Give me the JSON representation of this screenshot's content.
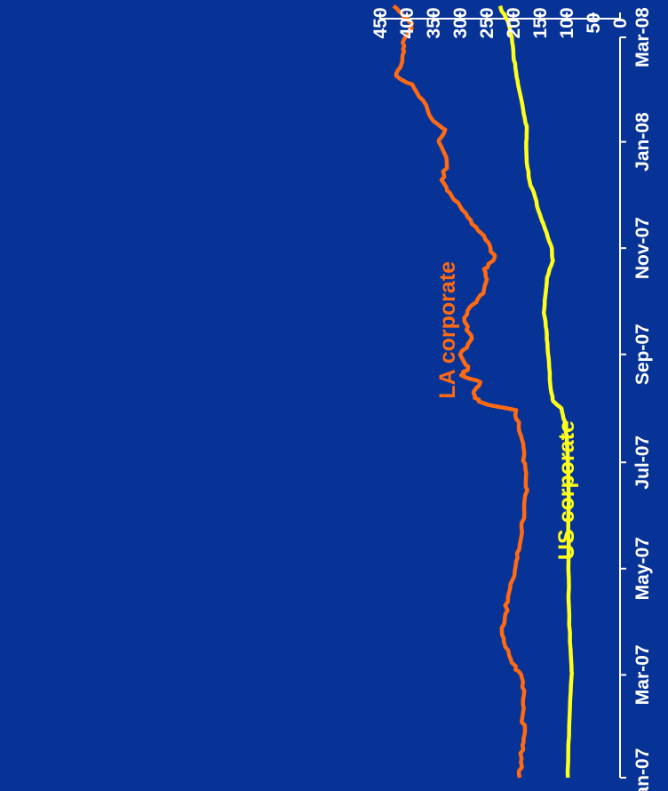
{
  "chart_data": {
    "type": "line",
    "title": "",
    "xlabel": "",
    "ylabel": "",
    "ylim": [
      0,
      450
    ],
    "y_ticks": [
      "0",
      "50",
      "100",
      "150",
      "200",
      "250",
      "300",
      "350",
      "400",
      "450"
    ],
    "x_ticks": [
      "Jan-07",
      "Mar-07",
      "May-07",
      "Jul-07",
      "Sep-07",
      "Nov-07",
      "Jan-08",
      "Mar-08"
    ],
    "grid": false,
    "legend": "none",
    "orientation": "rotated 90 degrees counter-clockwise",
    "background_color": "#073396",
    "axis_color": "#ffffff",
    "series": [
      {
        "name": "LA corporate",
        "color": "#ff6a13",
        "label_position": {
          "x": "2007-09-15",
          "y": 310
        },
        "points": [
          [
            "2007-01-01",
            188
          ],
          [
            "2007-01-10",
            186
          ],
          [
            "2007-01-20",
            183
          ],
          [
            "2007-01-26",
            179
          ],
          [
            "2007-02-05",
            183
          ],
          [
            "2007-02-15",
            182
          ],
          [
            "2007-02-25",
            182
          ],
          [
            "2007-03-03",
            190
          ],
          [
            "2007-03-10",
            205
          ],
          [
            "2007-03-20",
            218
          ],
          [
            "2007-03-28",
            222
          ],
          [
            "2007-04-05",
            215
          ],
          [
            "2007-04-15",
            210
          ],
          [
            "2007-04-25",
            201
          ],
          [
            "2007-05-05",
            195
          ],
          [
            "2007-05-15",
            188
          ],
          [
            "2007-05-25",
            185
          ],
          [
            "2007-06-05",
            180
          ],
          [
            "2007-06-15",
            174
          ],
          [
            "2007-06-25",
            176
          ],
          [
            "2007-07-05",
            180
          ],
          [
            "2007-07-15",
            185
          ],
          [
            "2007-07-22",
            190
          ],
          [
            "2007-07-31",
            195
          ],
          [
            "2007-08-05",
            265
          ],
          [
            "2007-08-10",
            275
          ],
          [
            "2007-08-16",
            262
          ],
          [
            "2007-08-20",
            298
          ],
          [
            "2007-08-25",
            285
          ],
          [
            "2007-09-01",
            300
          ],
          [
            "2007-09-10",
            278
          ],
          [
            "2007-09-20",
            292
          ],
          [
            "2007-09-28",
            282
          ],
          [
            "2007-10-05",
            262
          ],
          [
            "2007-10-12",
            252
          ],
          [
            "2007-10-20",
            255
          ],
          [
            "2007-10-27",
            235
          ],
          [
            "2007-11-03",
            245
          ],
          [
            "2007-11-10",
            262
          ],
          [
            "2007-11-17",
            280
          ],
          [
            "2007-11-25",
            300
          ],
          [
            "2007-12-03",
            320
          ],
          [
            "2007-12-10",
            335
          ],
          [
            "2007-12-20",
            325
          ],
          [
            "2008-01-01",
            340
          ],
          [
            "2008-01-08",
            328
          ],
          [
            "2008-01-15",
            355
          ],
          [
            "2008-01-25",
            370
          ],
          [
            "2008-02-03",
            390
          ],
          [
            "2008-02-08",
            420
          ],
          [
            "2008-02-15",
            410
          ],
          [
            "2008-02-22",
            405
          ],
          [
            "2008-02-29",
            405
          ],
          [
            "2008-03-05",
            395
          ],
          [
            "2008-03-09",
            390
          ],
          [
            "2008-03-15",
            410
          ],
          [
            "2008-03-19",
            425
          ]
        ]
      },
      {
        "name": "US corporate",
        "color": "#ffff1c",
        "label_position": {
          "x": "2007-06-15",
          "y": 87
        },
        "points": [
          [
            "2007-01-01",
            98
          ],
          [
            "2007-01-20",
            97
          ],
          [
            "2007-02-10",
            94
          ],
          [
            "2007-02-28",
            91
          ],
          [
            "2007-03-05",
            91
          ],
          [
            "2007-03-20",
            94
          ],
          [
            "2007-04-10",
            96
          ],
          [
            "2007-05-01",
            97
          ],
          [
            "2007-05-20",
            97
          ],
          [
            "2007-06-10",
            96
          ],
          [
            "2007-07-01",
            98
          ],
          [
            "2007-07-15",
            100
          ],
          [
            "2007-07-25",
            104
          ],
          [
            "2007-08-01",
            110
          ],
          [
            "2007-08-05",
            125
          ],
          [
            "2007-08-12",
            130
          ],
          [
            "2007-08-25",
            133
          ],
          [
            "2007-09-05",
            136
          ],
          [
            "2007-09-15",
            138
          ],
          [
            "2007-09-25",
            143
          ],
          [
            "2007-10-05",
            140
          ],
          [
            "2007-10-15",
            137
          ],
          [
            "2007-10-25",
            126
          ],
          [
            "2007-11-01",
            128
          ],
          [
            "2007-11-10",
            138
          ],
          [
            "2007-11-20",
            150
          ],
          [
            "2007-12-01",
            160
          ],
          [
            "2007-12-10",
            170
          ],
          [
            "2007-12-20",
            175
          ],
          [
            "2008-01-01",
            176
          ],
          [
            "2008-01-10",
            175
          ],
          [
            "2008-01-20",
            182
          ],
          [
            "2008-02-01",
            190
          ],
          [
            "2008-02-10",
            195
          ],
          [
            "2008-02-20",
            200
          ],
          [
            "2008-03-01",
            203
          ],
          [
            "2008-03-10",
            210
          ],
          [
            "2008-03-19",
            225
          ]
        ]
      }
    ]
  }
}
